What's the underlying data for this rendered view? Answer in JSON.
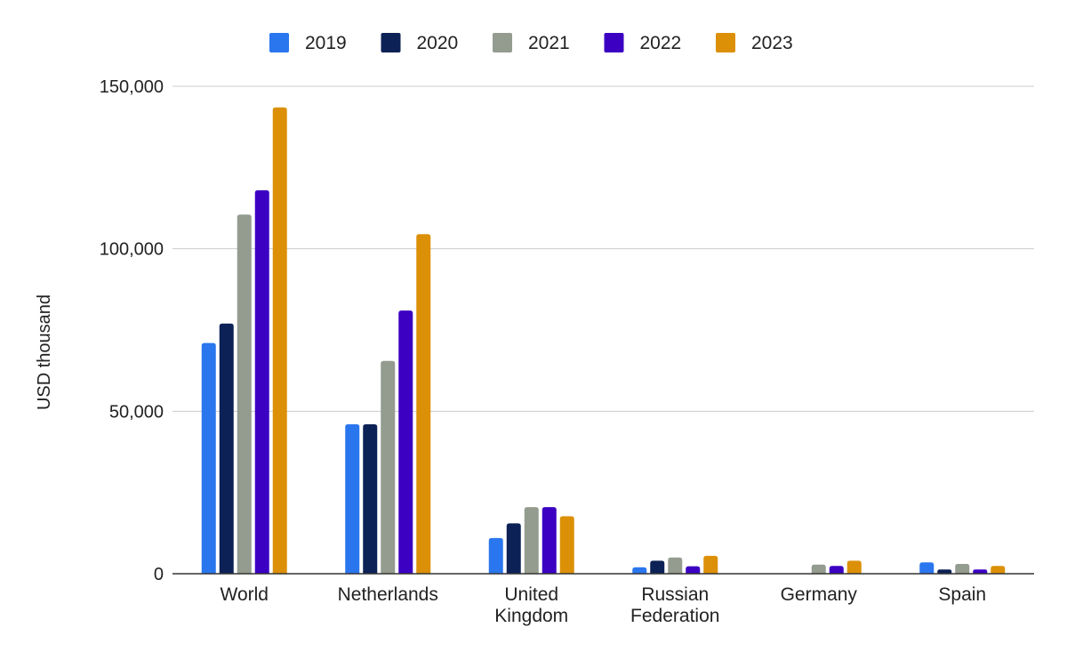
{
  "chart_data": {
    "type": "bar",
    "ylabel": "USD thousand",
    "ylim": [
      0,
      150000
    ],
    "yticks": [
      0,
      50000,
      100000,
      150000
    ],
    "ytick_labels": [
      "0",
      "50,000",
      "100,000",
      "150,000"
    ],
    "grid": true,
    "legend_position": "top",
    "categories": [
      [
        "World"
      ],
      [
        "Netherlands"
      ],
      [
        "United",
        "Kingdom"
      ],
      [
        "Russian",
        "Federation"
      ],
      [
        "Germany"
      ],
      [
        "Spain"
      ]
    ],
    "series": [
      {
        "name": "2019",
        "color": "#2a76ee",
        "values": [
          71000,
          46000,
          11000,
          2000,
          0,
          3500
        ]
      },
      {
        "name": "2020",
        "color": "#0c2155",
        "values": [
          77000,
          46000,
          15500,
          4000,
          0,
          1300
        ]
      },
      {
        "name": "2021",
        "color": "#939c8f",
        "values": [
          110500,
          65500,
          20500,
          5000,
          2800,
          3000
        ]
      },
      {
        "name": "2022",
        "color": "#3b00c2",
        "values": [
          118000,
          81000,
          20500,
          2300,
          2400,
          1300
        ]
      },
      {
        "name": "2023",
        "color": "#dc9008",
        "values": [
          143500,
          104500,
          17700,
          5500,
          4000,
          2400
        ]
      }
    ]
  }
}
